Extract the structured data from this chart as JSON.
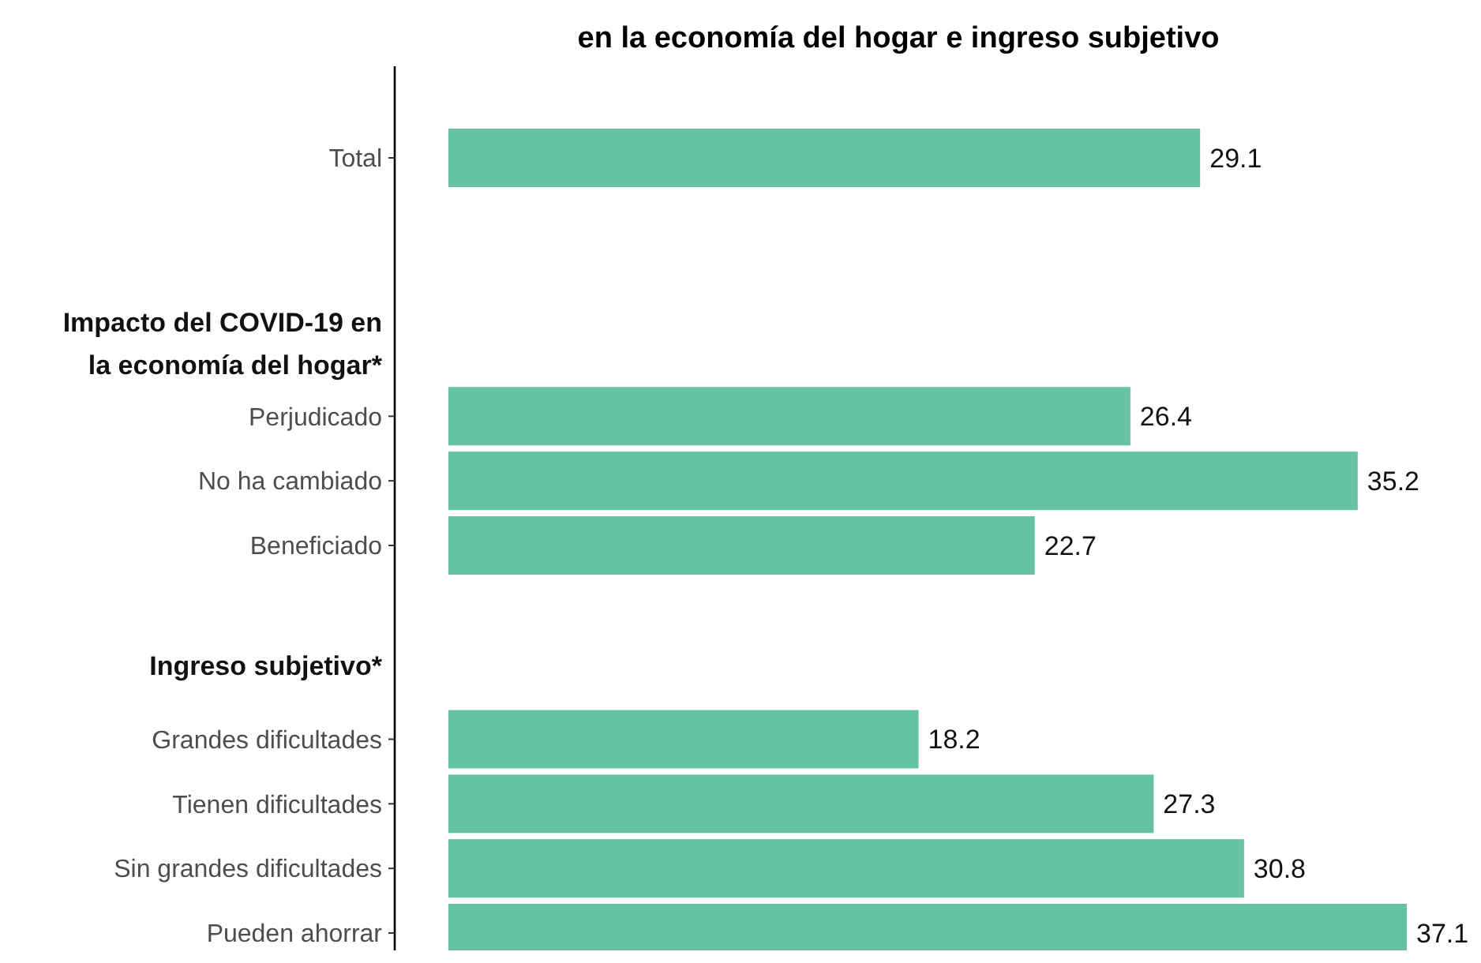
{
  "chart_data": {
    "type": "bar",
    "orientation": "horizontal",
    "title": "en la economía del hogar e ingreso subjetivo",
    "categories": [
      "Total",
      null,
      null,
      "Impacto del COVID-19 en la economía del hogar*",
      "Perjudicado",
      "No ha cambiado",
      "Beneficiado",
      null,
      "Ingreso subjetivo*",
      "Grandes dificultades",
      "Tienen dificultades",
      "Sin grandes dificultades",
      "Pueden ahorrar"
    ],
    "values": [
      29.1,
      null,
      null,
      null,
      26.4,
      35.2,
      22.7,
      null,
      null,
      18.2,
      27.3,
      30.8,
      37.1
    ],
    "color": "#66c2a5",
    "data_labels": true,
    "tick_labels": "y"
  }
}
